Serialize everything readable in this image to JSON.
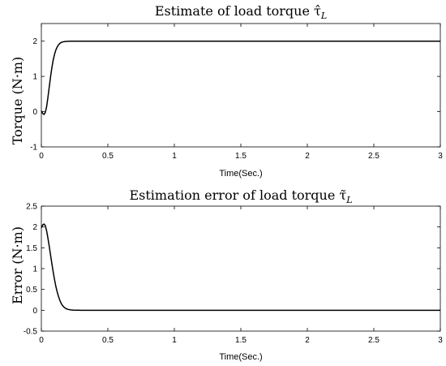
{
  "chart_data": [
    {
      "type": "line",
      "title": "Estimate of load torque τ̂",
      "title_sub": "L",
      "xlabel": "Time(Sec.)",
      "ylabel": "Torque (N·m)",
      "xlim": [
        0,
        3
      ],
      "ylim": [
        -1,
        2.5
      ],
      "xticks": [
        0,
        0.5,
        1,
        1.5,
        2,
        2.5,
        3
      ],
      "yticks": [
        -1,
        0,
        1,
        2
      ],
      "grid": false,
      "series": [
        {
          "x": [
            0,
            0.01,
            0.02,
            0.03,
            0.04,
            0.05,
            0.06,
            0.07,
            0.08,
            0.09,
            0.1,
            0.11,
            0.12,
            0.13,
            0.14,
            0.15,
            0.16,
            0.17,
            0.18,
            0.19,
            0.2,
            0.22,
            0.24,
            0.26,
            0.28,
            0.3,
            0.35,
            0.4,
            0.5,
            1,
            1.5,
            2,
            2.5,
            3
          ],
          "y": [
            0.02,
            -0.05,
            -0.08,
            -0.02,
            0.15,
            0.42,
            0.72,
            1.01,
            1.27,
            1.48,
            1.64,
            1.76,
            1.84,
            1.9,
            1.94,
            1.965,
            1.978,
            1.986,
            1.991,
            1.994,
            1.996,
            1.998,
            1.999,
            2.0,
            2.0,
            2.0,
            2.0,
            2.0,
            2.0,
            2.0,
            2.0,
            2.0,
            2.0,
            2.0
          ]
        }
      ]
    },
    {
      "type": "line",
      "title": "Estimation error of load torque τ̃",
      "title_sub": "L",
      "xlabel": "Time(Sec.)",
      "ylabel": "Error (N·m)",
      "xlim": [
        0,
        3
      ],
      "ylim": [
        -0.5,
        2.5
      ],
      "xticks": [
        0,
        0.5,
        1,
        1.5,
        2,
        2.5,
        3
      ],
      "yticks": [
        -0.5,
        0,
        0.5,
        1,
        1.5,
        2,
        2.5
      ],
      "grid": false,
      "series": [
        {
          "x": [
            0,
            0.01,
            0.02,
            0.03,
            0.04,
            0.05,
            0.06,
            0.07,
            0.08,
            0.09,
            0.1,
            0.11,
            0.12,
            0.13,
            0.14,
            0.15,
            0.16,
            0.17,
            0.18,
            0.19,
            0.2,
            0.22,
            0.24,
            0.26,
            0.28,
            0.3,
            0.33,
            0.36,
            0.4,
            0.5,
            1,
            1.5,
            2,
            2.5,
            3
          ],
          "y": [
            1.98,
            2.05,
            2.07,
            2.03,
            1.9,
            1.72,
            1.52,
            1.31,
            1.1,
            0.9,
            0.72,
            0.56,
            0.43,
            0.32,
            0.23,
            0.16,
            0.11,
            0.075,
            0.05,
            0.033,
            0.022,
            0.01,
            0.005,
            0.002,
            0.001,
            0.0,
            0.0,
            0.0,
            0.0,
            0.0,
            0.0,
            0.0,
            0.0,
            0.0,
            0.0
          ]
        }
      ]
    }
  ]
}
